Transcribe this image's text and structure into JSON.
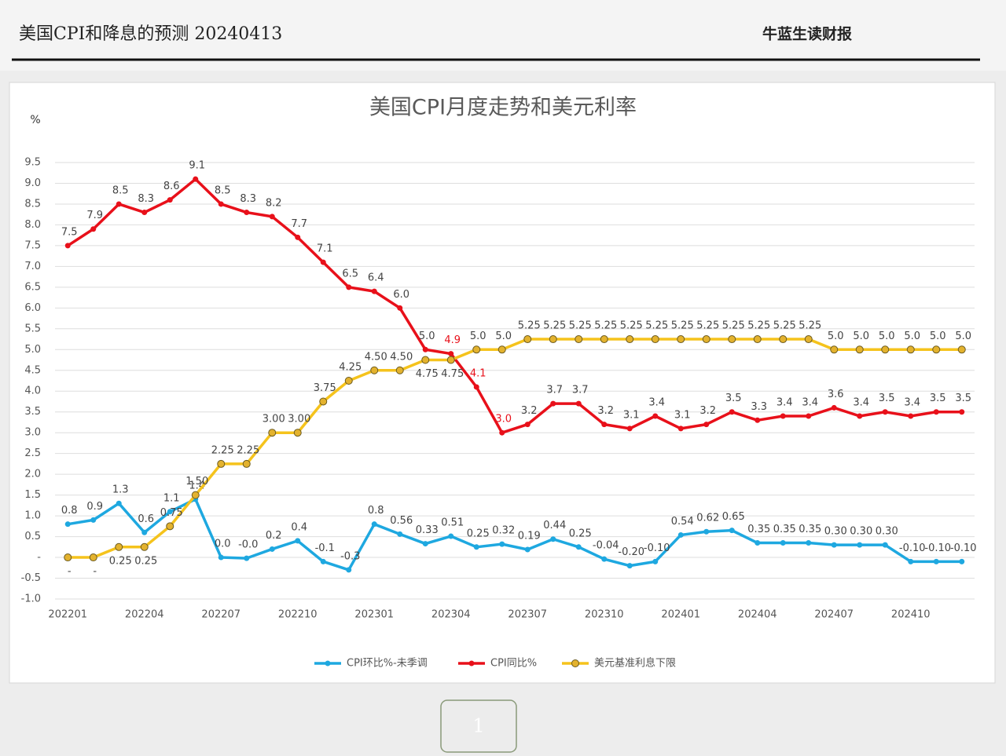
{
  "header": {
    "title": "美国CPI和降息的预测 20240413",
    "brand": "牛蓝生读财报"
  },
  "page_number": "1",
  "chart_data": {
    "type": "line",
    "title": "美国CPI月度走势和美元利率",
    "ylabel": "%",
    "categories": [
      "202201",
      null,
      null,
      "202204",
      null,
      null,
      "202207",
      null,
      null,
      "202210",
      null,
      null,
      "202301",
      null,
      null,
      "202304",
      null,
      null,
      "202307",
      null,
      null,
      "202310",
      null,
      null,
      "202401",
      null,
      null,
      "202404",
      null,
      null,
      "202407",
      null,
      null,
      "202410",
      null,
      null
    ],
    "ylim": [
      -1.0,
      9.5
    ],
    "yticks": [
      {
        "value": -1.0,
        "label": "-1.0"
      },
      {
        "value": -0.5,
        "label": "-0.5"
      },
      {
        "value": 0,
        "label": "-"
      },
      {
        "value": 0.5,
        "label": "0.5"
      },
      {
        "value": 1.0,
        "label": "1.0"
      },
      {
        "value": 1.5,
        "label": "1.5"
      },
      {
        "value": 2.0,
        "label": "2.0"
      },
      {
        "value": 2.5,
        "label": "2.5"
      },
      {
        "value": 3.0,
        "label": "3.0"
      },
      {
        "value": 3.5,
        "label": "3.5"
      },
      {
        "value": 4.0,
        "label": "4.0"
      },
      {
        "value": 4.5,
        "label": "4.5"
      },
      {
        "value": 5.0,
        "label": "5.0"
      },
      {
        "value": 5.5,
        "label": "5.5"
      },
      {
        "value": 6.0,
        "label": "6.0"
      },
      {
        "value": 6.5,
        "label": "6.5"
      },
      {
        "value": 7.0,
        "label": "7.0"
      },
      {
        "value": 7.5,
        "label": "7.5"
      },
      {
        "value": 8.0,
        "label": "8.0"
      },
      {
        "value": 8.5,
        "label": "8.5"
      },
      {
        "value": 9.0,
        "label": "9.0"
      },
      {
        "value": 9.5,
        "label": "9.5"
      }
    ],
    "grid": true,
    "series": [
      {
        "name": "CPI环比%-未季调",
        "color": "#1ea8e0",
        "values": [
          0.8,
          0.9,
          1.3,
          0.6,
          1.1,
          1.4,
          0.0,
          -0.02,
          0.2,
          0.4,
          -0.1,
          -0.3,
          0.8,
          0.56,
          0.33,
          0.51,
          0.25,
          0.32,
          0.19,
          0.44,
          0.25,
          -0.04,
          -0.2,
          -0.1,
          0.54,
          0.62,
          0.65,
          0.35,
          0.35,
          0.35,
          0.3,
          0.3,
          0.3,
          -0.1,
          -0.1,
          -0.1
        ],
        "value_labels": [
          "0.8",
          "0.9",
          "1.3",
          "0.6",
          "1.1",
          "1.4",
          "0.0",
          "-0.0",
          "0.2",
          "0.4",
          "-0.1",
          "-0.3",
          "0.8",
          "0.56",
          "0.33",
          "0.51",
          "0.25",
          "0.32",
          "0.19",
          "0.44",
          "0.25",
          "-0.04",
          "-0.20",
          "-0.10",
          "0.54",
          "0.62",
          "0.65",
          "0.35",
          "0.35",
          "0.35",
          "0.30",
          "0.30",
          "0.30",
          "-0.10",
          "-0.10",
          "-0.10"
        ]
      },
      {
        "name": "CPI同比%",
        "color": "#e8101a",
        "values": [
          7.5,
          7.9,
          8.5,
          8.3,
          8.6,
          9.1,
          8.5,
          8.3,
          8.2,
          7.7,
          7.1,
          6.5,
          6.4,
          6.0,
          5.0,
          4.9,
          4.1,
          3.0,
          3.2,
          3.7,
          3.7,
          3.2,
          3.1,
          3.4,
          3.1,
          3.2,
          3.5,
          3.3,
          3.4,
          3.4,
          3.6,
          3.4,
          3.5,
          3.4,
          3.5,
          3.5
        ],
        "value_labels": [
          "7.5",
          "7.9",
          "8.5",
          "8.3",
          "8.6",
          "9.1",
          "8.5",
          "8.3",
          "8.2",
          "7.7",
          "7.1",
          "6.5",
          "6.4",
          "6.0",
          "5.0",
          "4.9",
          "4.1",
          "3.0",
          "3.2",
          "3.7",
          "3.7",
          "3.2",
          "3.1",
          "3.4",
          "3.1",
          "3.2",
          "3.5",
          "3.3",
          "3.4",
          "3.4",
          "3.6",
          "3.4",
          "3.5",
          "3.4",
          "3.5",
          "3.5"
        ]
      },
      {
        "name": "美元基准利息下限",
        "color": "#f5c31c",
        "values": [
          0,
          0,
          0.25,
          0.25,
          0.75,
          1.5,
          2.25,
          2.25,
          3.0,
          3.0,
          3.75,
          4.25,
          4.5,
          4.5,
          4.75,
          4.75,
          5.0,
          5.0,
          5.25,
          5.25,
          5.25,
          5.25,
          5.25,
          5.25,
          5.25,
          5.25,
          5.25,
          5.25,
          5.25,
          5.25,
          5.0,
          5.0,
          5.0,
          5.0,
          5.0,
          5.0
        ],
        "value_labels": [
          "-",
          "-",
          "0.25",
          "0.25",
          "0.75",
          "1.50",
          "2.25",
          "2.25",
          "3.00",
          "3.00",
          "3.75",
          "4.25",
          "4.50",
          "4.50",
          "4.75",
          "4.75",
          "5.0",
          "5.0",
          "5.25",
          "5.25",
          "5.25",
          "5.25",
          "5.25",
          "5.25",
          "5.25",
          "5.25",
          "5.25",
          "5.25",
          "5.25",
          "5.25",
          "5.0",
          "5.0",
          "5.0",
          "5.0",
          "5.0",
          "5.0"
        ]
      }
    ]
  }
}
